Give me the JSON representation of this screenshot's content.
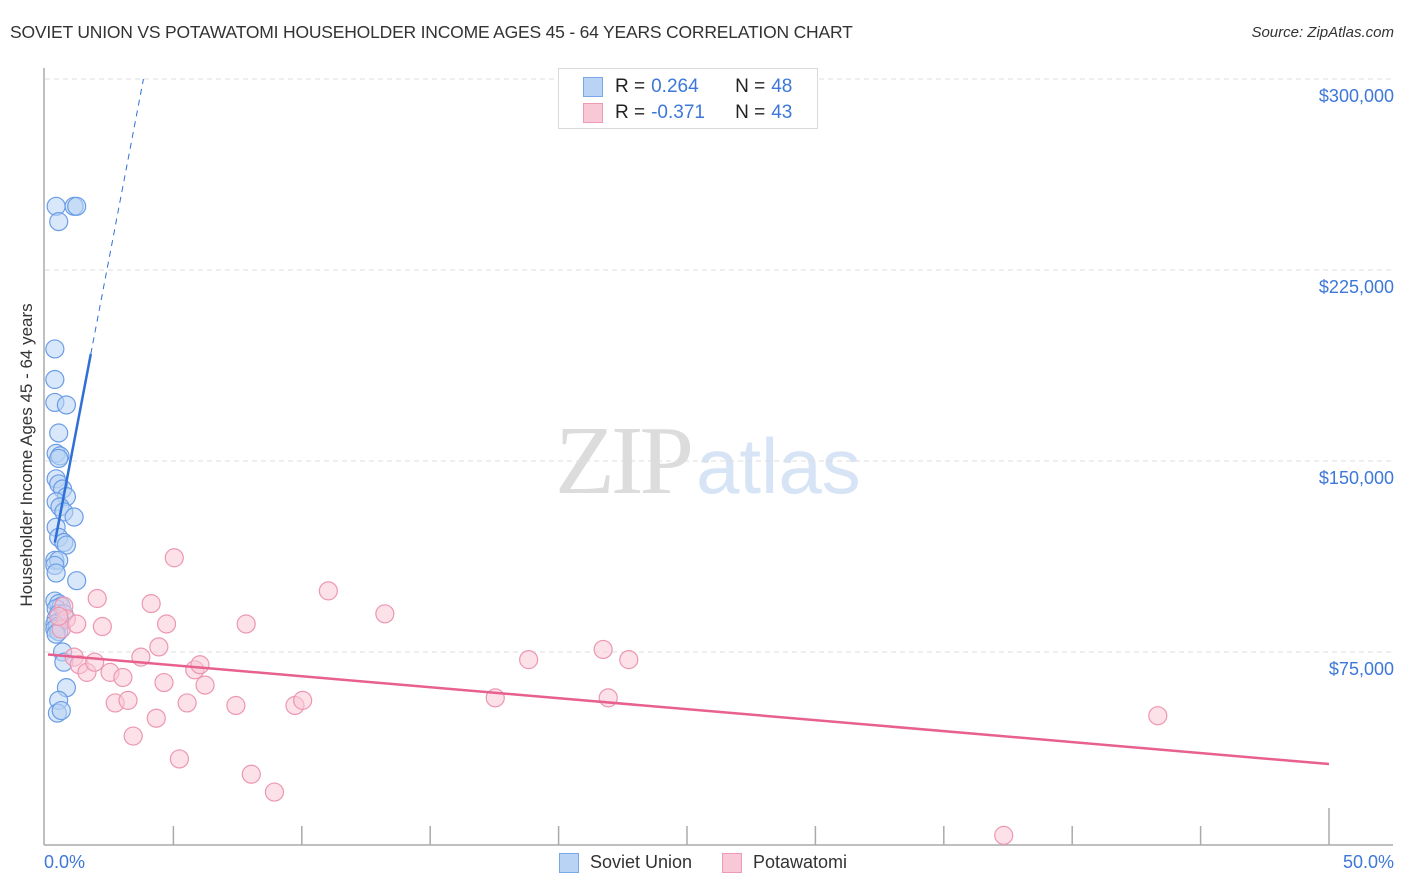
{
  "header": {
    "title": "SOVIET UNION VS POTAWATOMI HOUSEHOLDER INCOME AGES 45 - 64 YEARS CORRELATION CHART",
    "source": "Source: ZipAtlas.com"
  },
  "watermark": {
    "zip": "ZIP",
    "atlas": "atlas"
  },
  "legend": {
    "rows": [
      {
        "r_label": "R =",
        "r_value": "0.264",
        "n_label": "N =",
        "n_value": "48",
        "fill": "#b8d3f4",
        "stroke": "#7aa7e8"
      },
      {
        "r_label": "R =",
        "r_value": "-0.371",
        "n_label": "N =",
        "n_value": "43",
        "fill": "#f9c8d7",
        "stroke": "#ef9ab4"
      }
    ]
  },
  "bottom_legend": [
    {
      "label": "Soviet Union",
      "fill": "#b8d3f4",
      "stroke": "#7aa7e8"
    },
    {
      "label": "Potawatomi",
      "fill": "#f9c8d7",
      "stroke": "#ef9ab4"
    }
  ],
  "axes": {
    "ylabel": "Householder Income Ages 45 - 64 years",
    "yticks": [
      {
        "label": "$300,000",
        "value": 300000
      },
      {
        "label": "$225,000",
        "value": 225000
      },
      {
        "label": "$150,000",
        "value": 150000
      },
      {
        "label": "$75,000",
        "value": 75000
      }
    ],
    "xticks": [
      {
        "label": "0.0%",
        "value": 0
      },
      {
        "label": "50.0%",
        "value": 50
      }
    ]
  },
  "colors": {
    "blue_fill": "#b8d3f4",
    "blue_stroke": "#6b9de6",
    "blue_line": "#2f6fd6",
    "pink_fill": "#f9c8d7",
    "pink_stroke": "#ec97b1",
    "pink_line": "#e8608e",
    "tick_label": "#3d78d8",
    "grid": "#dddddd"
  },
  "chart_data": {
    "type": "scatter",
    "title": "SOVIET UNION VS POTAWATOMI HOUSEHOLDER INCOME AGES 45 - 64 YEARS CORRELATION CHART",
    "xlabel": "",
    "ylabel": "Householder Income Ages 45 - 64 years",
    "xlim": [
      0,
      50
    ],
    "ylim": [
      0,
      300000
    ],
    "x_unit": "%",
    "grid": {
      "horizontal": true,
      "vertical": false,
      "style": "dashed"
    },
    "legend_position": "top-center and bottom-center",
    "series": [
      {
        "name": "Soviet Union",
        "R": 0.264,
        "N": 48,
        "color": "#b8d3f4",
        "trendline": {
          "x": [
            0.15,
            1.55
          ],
          "y": [
            118000,
            192000
          ],
          "dashed_extension_to": [
            3.6,
            300000
          ]
        },
        "points": [
          [
            0.2,
            250000
          ],
          [
            0.3,
            244000
          ],
          [
            0.9,
            250000
          ],
          [
            1.0,
            250000
          ],
          [
            0.15,
            194000
          ],
          [
            0.15,
            182000
          ],
          [
            0.15,
            173000
          ],
          [
            0.6,
            172000
          ],
          [
            0.3,
            161000
          ],
          [
            0.2,
            153000
          ],
          [
            0.35,
            152000
          ],
          [
            0.3,
            151000
          ],
          [
            0.2,
            143000
          ],
          [
            0.3,
            141000
          ],
          [
            0.45,
            139000
          ],
          [
            0.6,
            136000
          ],
          [
            0.2,
            134000
          ],
          [
            0.35,
            132000
          ],
          [
            0.5,
            130000
          ],
          [
            0.9,
            128000
          ],
          [
            0.2,
            124000
          ],
          [
            0.3,
            120000
          ],
          [
            0.5,
            118000
          ],
          [
            0.6,
            117000
          ],
          [
            0.15,
            111000
          ],
          [
            0.3,
            111000
          ],
          [
            0.15,
            109000
          ],
          [
            0.2,
            106000
          ],
          [
            1.0,
            103000
          ],
          [
            0.15,
            95000
          ],
          [
            0.3,
            94000
          ],
          [
            0.4,
            93000
          ],
          [
            0.2,
            92000
          ],
          [
            0.3,
            90000
          ],
          [
            0.5,
            90000
          ],
          [
            0.2,
            88000
          ],
          [
            0.35,
            87000
          ],
          [
            0.15,
            86000
          ],
          [
            0.25,
            85000
          ],
          [
            0.15,
            84000
          ],
          [
            0.3,
            83000
          ],
          [
            0.2,
            82000
          ],
          [
            0.45,
            75000
          ],
          [
            0.5,
            71000
          ],
          [
            0.6,
            61000
          ],
          [
            0.3,
            56000
          ],
          [
            0.25,
            51000
          ],
          [
            0.4,
            52000
          ]
        ]
      },
      {
        "name": "Potawatomi",
        "R": -0.371,
        "N": 43,
        "color": "#f9c8d7",
        "trendline": {
          "x": [
            0.0,
            50.0
          ],
          "y": [
            74000,
            31000
          ]
        },
        "points": [
          [
            0.5,
            93000
          ],
          [
            0.6,
            88000
          ],
          [
            0.4,
            84000
          ],
          [
            1.0,
            86000
          ],
          [
            1.8,
            96000
          ],
          [
            2.0,
            85000
          ],
          [
            0.9,
            73000
          ],
          [
            1.1,
            70000
          ],
          [
            1.4,
            67000
          ],
          [
            1.7,
            71000
          ],
          [
            2.3,
            67000
          ],
          [
            2.8,
            65000
          ],
          [
            2.5,
            55000
          ],
          [
            3.0,
            56000
          ],
          [
            3.2,
            42000
          ],
          [
            3.5,
            73000
          ],
          [
            3.9,
            94000
          ],
          [
            4.2,
            77000
          ],
          [
            4.5,
            86000
          ],
          [
            4.1,
            49000
          ],
          [
            4.4,
            63000
          ],
          [
            4.8,
            112000
          ],
          [
            5.0,
            33000
          ],
          [
            5.3,
            55000
          ],
          [
            5.6,
            68000
          ],
          [
            5.8,
            70000
          ],
          [
            6.0,
            62000
          ],
          [
            7.2,
            54000
          ],
          [
            7.6,
            86000
          ],
          [
            7.8,
            27000
          ],
          [
            8.7,
            20000
          ],
          [
            9.5,
            54000
          ],
          [
            9.8,
            56000
          ],
          [
            10.8,
            99000
          ],
          [
            13.0,
            90000
          ],
          [
            17.3,
            57000
          ],
          [
            18.6,
            72000
          ],
          [
            21.5,
            76000
          ],
          [
            21.7,
            57000
          ],
          [
            22.5,
            72000
          ],
          [
            37.1,
            3000
          ],
          [
            43.1,
            50000
          ],
          [
            0.3,
            89000
          ]
        ]
      }
    ]
  }
}
